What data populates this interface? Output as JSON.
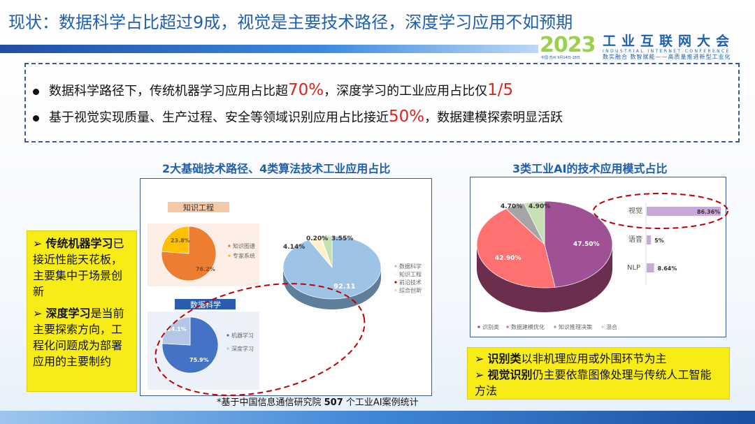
{
  "title": "现状：数据科学占比超过9成，视觉是主要技术路径，深度学习应用不如预期",
  "logo": {
    "year": "2023",
    "name_cn": "工业互联网大会",
    "name_en": "INDUSTRIAL INTERNET CONFERENCE",
    "slogan": "数实融合  数智赋能——高质量推进新型工业化",
    "date": "中国·苏州  9月14日-18日"
  },
  "summary": {
    "bullets": [
      {
        "pre": "数据科学路径下，传统机器学习应用占比超",
        "h1": "70%",
        "mid": "，深度学习的工业应用占比仅",
        "h2": "1/5",
        "post": ""
      },
      {
        "pre": "基于视觉实现质量、生产过程、安全等领域识别应用占比接近",
        "h1": "50%",
        "mid": "，数据建模探索明显活跃",
        "h2": "",
        "post": ""
      }
    ]
  },
  "left_section": {
    "heading": "2大基础技术路径、4类算法技术工业应用占比"
  },
  "right_section": {
    "heading": "3类工业AI的技术应用模式占比"
  },
  "left_callout": [
    {
      "bold": "传统机器学习",
      "text": "已接近性能天花板，主要集中于场景创新"
    },
    {
      "bold": "深度学习",
      "text": "是当前主要探索方向，工程化问题成为部署应用的主要制约"
    }
  ],
  "right_callout": [
    {
      "bold": "识别类",
      "text": "以非机理应用或外围环节为主"
    },
    {
      "bold": "视觉识别",
      "text": "仍主要依靠图像处理与传统人工智能方法"
    }
  ],
  "footnote": {
    "pre": "*基于中国信息通信研究院 ",
    "num": "507",
    "post": " 个工业AI案例统计"
  },
  "chart_data": [
    {
      "type": "pie",
      "title": "知识工程",
      "categories": [
        "知识图谱",
        "专家系统"
      ],
      "values": [
        76.2,
        23.8
      ],
      "labels": [
        "76.2%",
        "23.8%"
      ],
      "colors": [
        "#ed7d31",
        "#ffc000"
      ],
      "legend": "right"
    },
    {
      "type": "pie",
      "title": "数据科学",
      "categories": [
        "机器学习",
        "深度学习"
      ],
      "values": [
        75.9,
        24.1
      ],
      "labels": [
        "75.9%",
        "24.1%"
      ],
      "colors": [
        "#4472c4",
        "#b4c7e7"
      ],
      "legend": "right"
    },
    {
      "type": "pie",
      "title": "",
      "categories": [
        "数据科学",
        "知识工程",
        "前沿技术",
        "综合创新"
      ],
      "values": [
        92.11,
        4.14,
        0.2,
        3.55
      ],
      "labels": [
        "92.11",
        "4.14%",
        "0.20%",
        "3.55%"
      ],
      "colors": [
        "#9dc3e6",
        "#fff2cc",
        "#c00000",
        "#c5e0b4"
      ],
      "legend": "right"
    },
    {
      "type": "pie",
      "title": "",
      "categories": [
        "识别类",
        "数据建模优化",
        "知识推理决策",
        "混合"
      ],
      "values": [
        47.5,
        42.9,
        4.7,
        4.9
      ],
      "labels": [
        "47.50%",
        "42.90%",
        "4.70%",
        "4.90%"
      ],
      "colors": [
        "#a05195",
        "#ff7070",
        "#a5a5a5",
        "#c5e0b4"
      ],
      "legend": "bottom"
    },
    {
      "type": "bar",
      "orientation": "horizontal",
      "title": "",
      "categories": [
        "视觉",
        "语音",
        "NLP"
      ],
      "values": [
        86.36,
        5,
        8.64
      ],
      "labels": [
        "86.36%",
        "5%",
        "8.64%"
      ],
      "colors": [
        "#c9a9d8"
      ]
    }
  ]
}
